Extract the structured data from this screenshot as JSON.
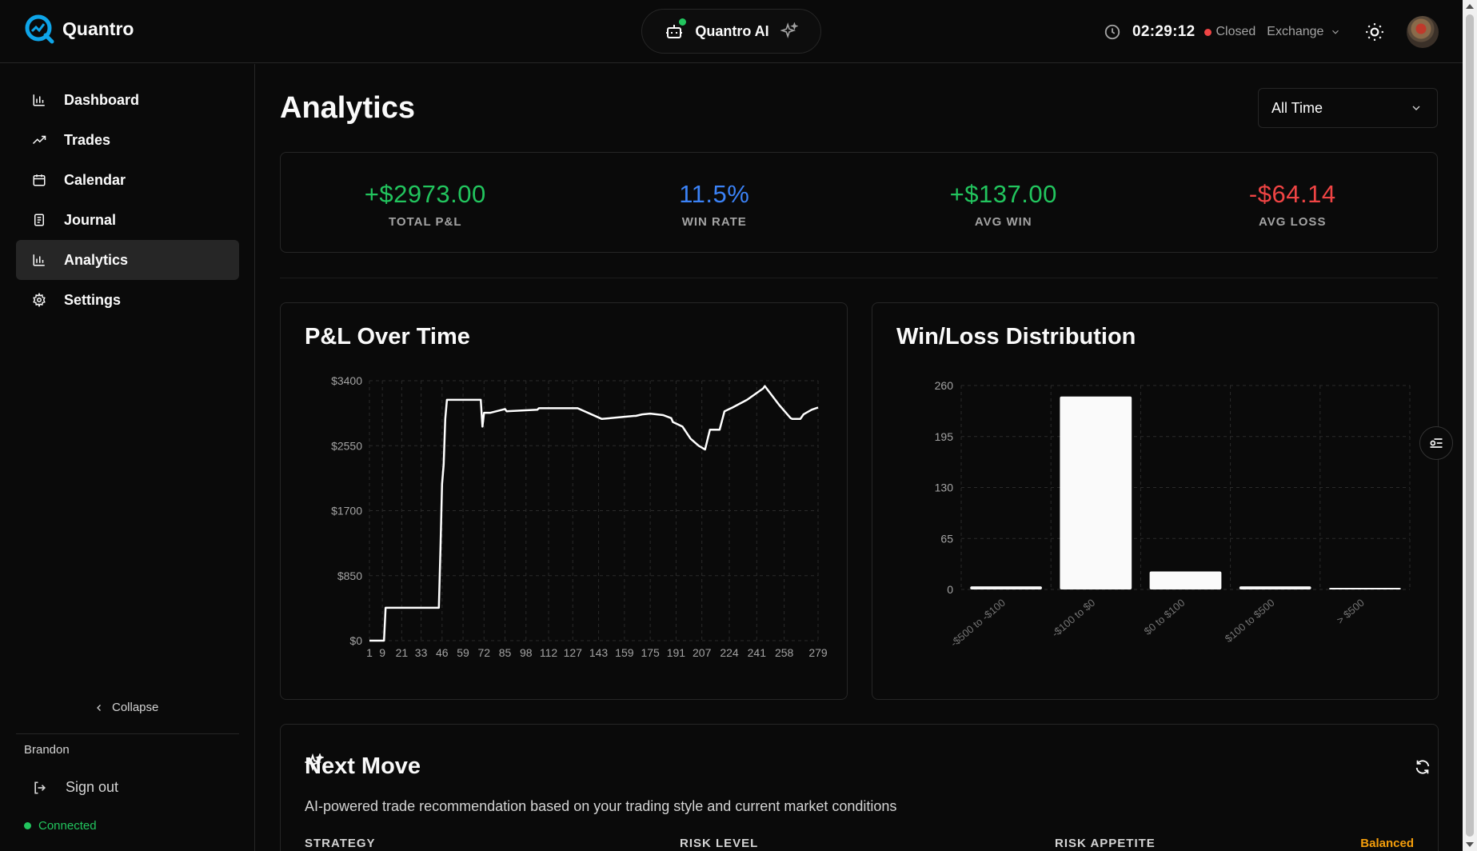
{
  "header": {
    "brand": "Quantro",
    "ai_label": "Quantro AI",
    "clock": "02:29:12",
    "market_status": "Closed",
    "exchange_label": "Exchange"
  },
  "sidebar": {
    "items": [
      {
        "label": "Dashboard",
        "icon": "bar-chart-icon"
      },
      {
        "label": "Trades",
        "icon": "trending-up-icon"
      },
      {
        "label": "Calendar",
        "icon": "calendar-icon"
      },
      {
        "label": "Journal",
        "icon": "notebook-icon"
      },
      {
        "label": "Analytics",
        "icon": "bar-chart-icon",
        "active": true
      },
      {
        "label": "Settings",
        "icon": "gear-icon"
      }
    ],
    "collapse_label": "Collapse",
    "user_name": "Brandon",
    "signout_label": "Sign out",
    "connection_status": "Connected"
  },
  "main": {
    "title": "Analytics",
    "range": "All Time",
    "stats": [
      {
        "value": "+$2973.00",
        "label": "TOTAL P&L",
        "color": "#22c55e"
      },
      {
        "value": "11.5%",
        "label": "WIN RATE",
        "color": "#3b82f6"
      },
      {
        "value": "+$137.00",
        "label": "AVG WIN",
        "color": "#22c55e"
      },
      {
        "value": "-$64.14",
        "label": "AVG LOSS",
        "color": "#ef4444"
      }
    ],
    "pnl_card_title": "P&L Over Time",
    "dist_card_title": "Win/Loss Distribution",
    "next_move": {
      "title": "Next Move",
      "subtitle": "AI-powered trade recommendation based on your trading style and current market conditions",
      "columns": [
        "STRATEGY",
        "RISK LEVEL",
        "RISK APPETITE"
      ],
      "badge": "Balanced"
    }
  },
  "colors": {
    "positive": "#22c55e",
    "negative": "#ef4444",
    "accent": "#3b82f6",
    "warning": "#f59e0b"
  },
  "chart_data": [
    {
      "type": "line",
      "title": "P&L Over Time",
      "x_ticks": [
        "1",
        "9",
        "21",
        "33",
        "46",
        "59",
        "72",
        "85",
        "98",
        "112",
        "127",
        "143",
        "159",
        "175",
        "191",
        "207",
        "224",
        "241",
        "258",
        "279"
      ],
      "y_ticks": [
        "$0",
        "$850",
        "$1700",
        "$2550",
        "$3400"
      ],
      "ylim": [
        0,
        3400
      ],
      "xlim": [
        1,
        279
      ],
      "grid": true,
      "series": [
        {
          "x": [
            1,
            10,
            11,
            44,
            45,
            46,
            47,
            48,
            49,
            50,
            51,
            52,
            53,
            55,
            70,
            71,
            72,
            73,
            74,
            76,
            85,
            86,
            105,
            106,
            130,
            145,
            165,
            166,
            170,
            175,
            183,
            188,
            189,
            195,
            200,
            205,
            209,
            212,
            215,
            218,
            221,
            226,
            235,
            245,
            246,
            255,
            262,
            263,
            268,
            270,
            275,
            279
          ],
          "y": [
            0,
            0,
            430,
            430,
            1200,
            2050,
            2300,
            2900,
            3150,
            3150,
            3150,
            3150,
            3150,
            3150,
            3150,
            2800,
            2980,
            2980,
            2980,
            2980,
            3030,
            3000,
            3020,
            3040,
            3040,
            2900,
            2940,
            2940,
            2960,
            2970,
            2950,
            2910,
            2860,
            2800,
            2640,
            2550,
            2500,
            2760,
            2760,
            2760,
            3000,
            3050,
            3150,
            3300,
            3330,
            3080,
            2910,
            2900,
            2900,
            2960,
            3020,
            3050
          ]
        }
      ]
    },
    {
      "type": "bar",
      "title": "Win/Loss Distribution",
      "categories": [
        "-$500 to -$100",
        "-$100 to $0",
        "$0 to $100",
        "$100 to $500",
        "> $500"
      ],
      "values": [
        4,
        246,
        23,
        4,
        2
      ],
      "y_ticks": [
        "0",
        "65",
        "130",
        "195",
        "260"
      ],
      "ylim": [
        0,
        260
      ],
      "grid": true
    }
  ]
}
